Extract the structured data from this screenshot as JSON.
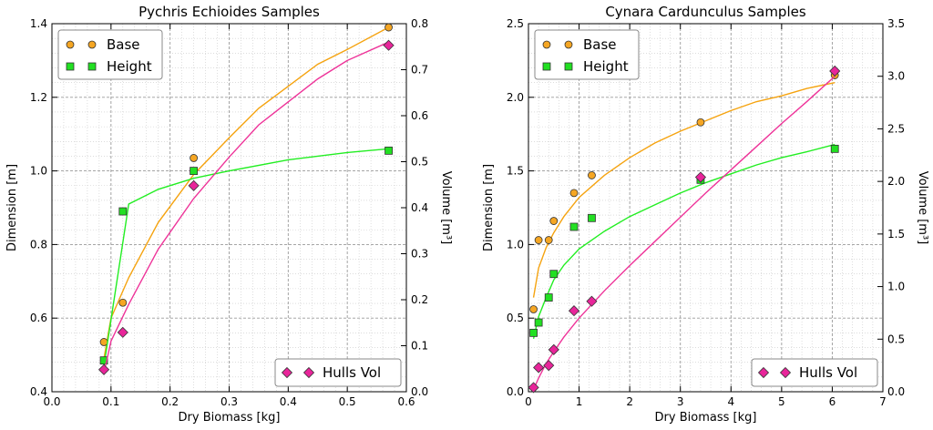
{
  "chart_data": [
    {
      "type": "scatter",
      "title": "Pychris Echioides Samples",
      "xlabel": "Dry Biomass [kg]",
      "ylabel_left": "Dimension [m]",
      "ylabel_right": "Volume [m³]",
      "xlim": [
        0.0,
        0.6
      ],
      "ylim_left": [
        0.4,
        1.4
      ],
      "ylim_right": [
        0.0,
        0.8
      ],
      "xticks": [
        "0.0",
        "0.1",
        "0.2",
        "0.3",
        "0.4",
        "0.5",
        "0.6"
      ],
      "yticks_left": [
        "0.4",
        "0.6",
        "0.8",
        "1.0",
        "1.2",
        "1.4"
      ],
      "yticks_right": [
        "0.0",
        "0.1",
        "0.2",
        "0.3",
        "0.4",
        "0.5",
        "0.6",
        "0.7",
        "0.8"
      ],
      "grid": true,
      "legend_upper": "top-left",
      "legend_lower": "bottom-right",
      "series": [
        {
          "name": "Base",
          "axis": "left",
          "marker": "circle",
          "color": "#f5a623",
          "line_color": "#f5a30f",
          "x": [
            0.088,
            0.12,
            0.24,
            0.57
          ],
          "y": [
            0.535,
            0.642,
            1.035,
            1.39
          ],
          "fit_x": [
            0.088,
            0.1,
            0.13,
            0.18,
            0.24,
            0.3,
            0.35,
            0.4,
            0.45,
            0.5,
            0.57
          ],
          "fit_y": [
            0.49,
            0.6,
            0.71,
            0.86,
            0.99,
            1.09,
            1.17,
            1.23,
            1.29,
            1.33,
            1.39
          ]
        },
        {
          "name": "Height",
          "axis": "left",
          "marker": "square",
          "color": "#22e022",
          "line_color": "#22ee22",
          "x": [
            0.088,
            0.12,
            0.24,
            0.57
          ],
          "y": [
            0.485,
            0.89,
            1.0,
            1.055
          ],
          "fit_x": [
            0.088,
            0.13,
            0.18,
            0.24,
            0.3,
            0.4,
            0.5,
            0.57
          ],
          "fit_y": [
            0.47,
            0.91,
            0.95,
            0.98,
            1.0,
            1.03,
            1.05,
            1.06
          ]
        },
        {
          "name": "Hulls Vol",
          "axis": "right",
          "marker": "diamond",
          "color": "#e8259a",
          "line_color": "#ee3399",
          "x": [
            0.088,
            0.12,
            0.24,
            0.57
          ],
          "y": [
            0.048,
            0.129,
            0.448,
            0.753
          ],
          "fit_x": [
            0.088,
            0.1,
            0.13,
            0.18,
            0.24,
            0.3,
            0.35,
            0.4,
            0.45,
            0.5,
            0.57
          ],
          "fit_y": [
            0.04,
            0.11,
            0.19,
            0.31,
            0.42,
            0.51,
            0.58,
            0.63,
            0.68,
            0.72,
            0.76
          ]
        }
      ]
    },
    {
      "type": "scatter",
      "title": "Cynara Cardunculus Samples",
      "xlabel": "Dry Biomass [kg]",
      "ylabel_left": "Dimension [m]",
      "ylabel_right": "Volume [m³]",
      "xlim": [
        0,
        7
      ],
      "ylim_left": [
        0.0,
        2.5
      ],
      "ylim_right": [
        0.0,
        3.5
      ],
      "xticks": [
        "0",
        "1",
        "2",
        "3",
        "4",
        "5",
        "6",
        "7"
      ],
      "yticks_left": [
        "0.0",
        "0.5",
        "1.0",
        "1.5",
        "2.0",
        "2.5"
      ],
      "yticks_right": [
        "0.0",
        "0.5",
        "1.0",
        "1.5",
        "2.0",
        "2.5",
        "3.0",
        "3.5"
      ],
      "grid": true,
      "legend_upper": "top-left",
      "legend_lower": "bottom-right",
      "series": [
        {
          "name": "Base",
          "axis": "left",
          "marker": "circle",
          "color": "#f5a623",
          "line_color": "#f5a30f",
          "x": [
            0.1,
            0.2,
            0.4,
            0.5,
            0.9,
            1.25,
            3.4,
            6.05
          ],
          "y": [
            0.56,
            1.03,
            1.03,
            1.16,
            1.35,
            1.47,
            1.83,
            2.15
          ],
          "fit_x": [
            0.1,
            0.2,
            0.35,
            0.5,
            0.7,
            1.0,
            1.5,
            2.0,
            2.5,
            3.0,
            3.5,
            4.0,
            4.5,
            5.0,
            5.5,
            6.05
          ],
          "fit_y": [
            0.64,
            0.84,
            0.98,
            1.08,
            1.19,
            1.32,
            1.47,
            1.59,
            1.69,
            1.77,
            1.84,
            1.91,
            1.97,
            2.01,
            2.06,
            2.1
          ]
        },
        {
          "name": "Height",
          "axis": "left",
          "marker": "square",
          "color": "#22e022",
          "line_color": "#22ee22",
          "x": [
            0.1,
            0.2,
            0.4,
            0.5,
            0.9,
            1.25,
            3.4,
            6.05
          ],
          "y": [
            0.4,
            0.47,
            0.64,
            0.8,
            1.12,
            1.18,
            1.44,
            1.65
          ],
          "fit_x": [
            0.1,
            0.2,
            0.35,
            0.5,
            0.7,
            1.0,
            1.5,
            2.0,
            2.5,
            3.0,
            3.5,
            4.0,
            4.5,
            5.0,
            5.5,
            6.05
          ],
          "fit_y": [
            0.36,
            0.51,
            0.64,
            0.76,
            0.86,
            0.97,
            1.09,
            1.19,
            1.27,
            1.35,
            1.42,
            1.48,
            1.54,
            1.59,
            1.63,
            1.68
          ]
        },
        {
          "name": "Hulls Vol",
          "axis": "right",
          "marker": "diamond",
          "color": "#e8259a",
          "line_color": "#ee3399",
          "x": [
            0.1,
            0.2,
            0.4,
            0.5,
            0.9,
            1.25,
            3.4,
            6.05
          ],
          "y": [
            0.04,
            0.23,
            0.25,
            0.4,
            0.77,
            0.86,
            2.04,
            3.05
          ],
          "fit_x": [
            0.1,
            0.2,
            0.35,
            0.5,
            0.7,
            1.0,
            1.5,
            2.0,
            2.5,
            3.0,
            3.5,
            4.0,
            4.5,
            5.0,
            5.5,
            6.05
          ],
          "fit_y": [
            0.02,
            0.13,
            0.27,
            0.38,
            0.52,
            0.7,
            0.96,
            1.2,
            1.43,
            1.66,
            1.89,
            2.11,
            2.33,
            2.55,
            2.76,
            3.0
          ]
        }
      ]
    }
  ]
}
